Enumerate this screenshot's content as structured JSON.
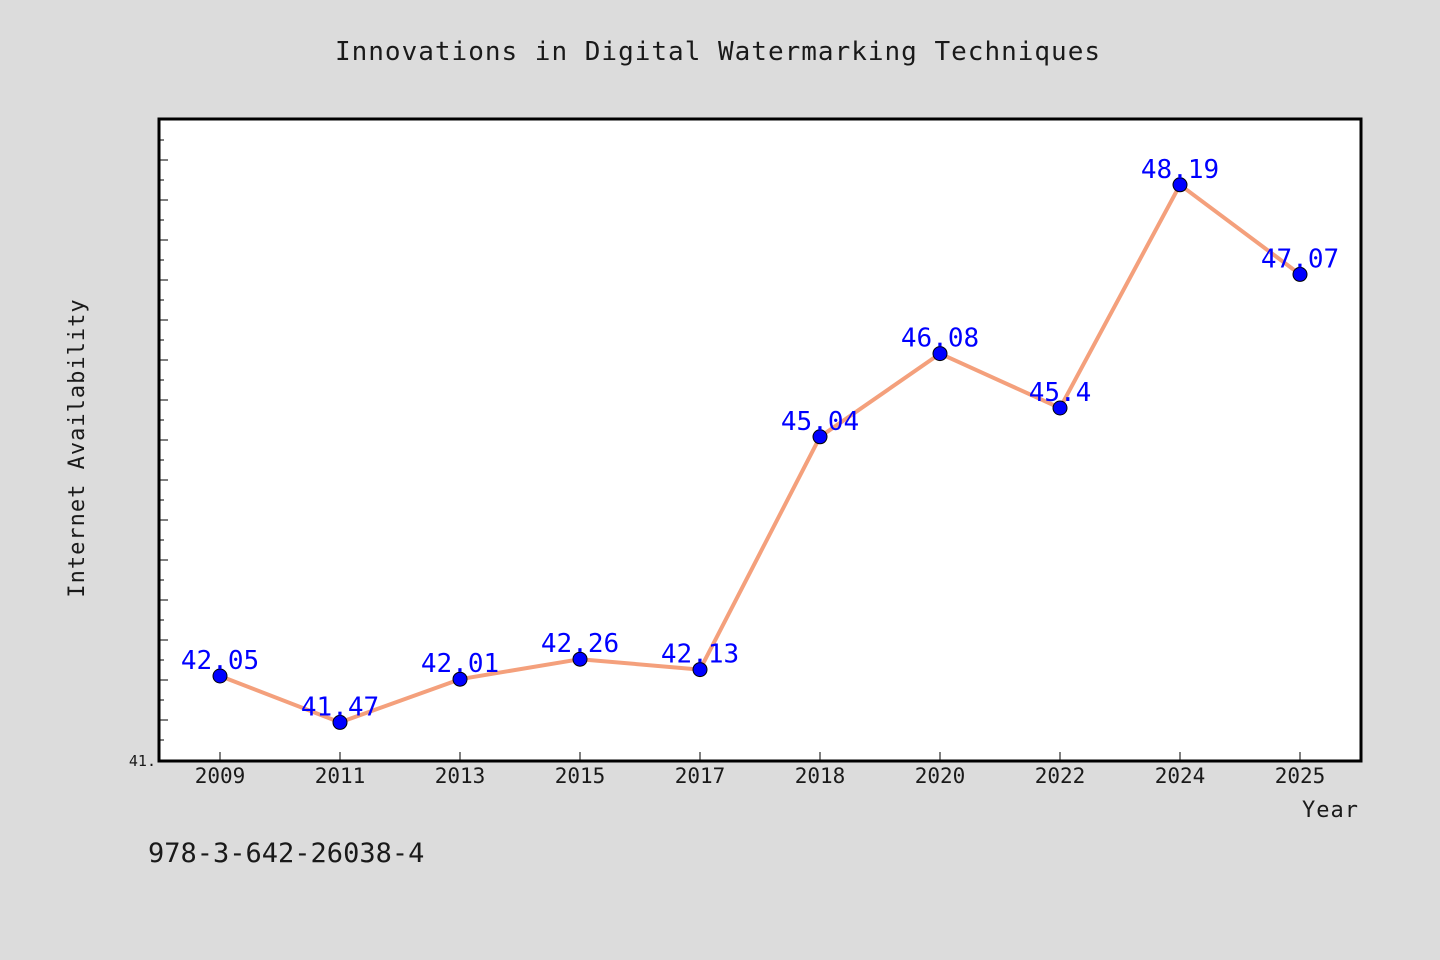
{
  "chart_data": {
    "type": "line",
    "title": "Innovations in Digital Watermarking Techniques",
    "xlabel": "Year",
    "ylabel": "Internet Availability",
    "categories": [
      "2009",
      "2011",
      "2013",
      "2015",
      "2017",
      "2018",
      "2020",
      "2022",
      "2024",
      "2025"
    ],
    "series": [
      {
        "values": [
          42.05,
          41.47,
          42.01,
          42.26,
          42.13,
          45.04,
          46.08,
          45.4,
          48.19,
          47.07
        ],
        "labels": [
          "42.05",
          "41.47",
          "42.01",
          "42.26",
          "42.13",
          "45.04",
          "46.08",
          "45.4",
          "48.19",
          "47.07"
        ]
      }
    ],
    "ylim": [
      41,
      49
    ],
    "y_tick_label": "41.",
    "grid": false,
    "legend": "none",
    "colors": {
      "line": "#f4a07c",
      "marker": "#0000ff",
      "label": "#0000ff",
      "background": "#dcdcdc",
      "plot_background": "#ffffff"
    }
  },
  "footer": {
    "isbn": "978-3-642-26038-4"
  }
}
